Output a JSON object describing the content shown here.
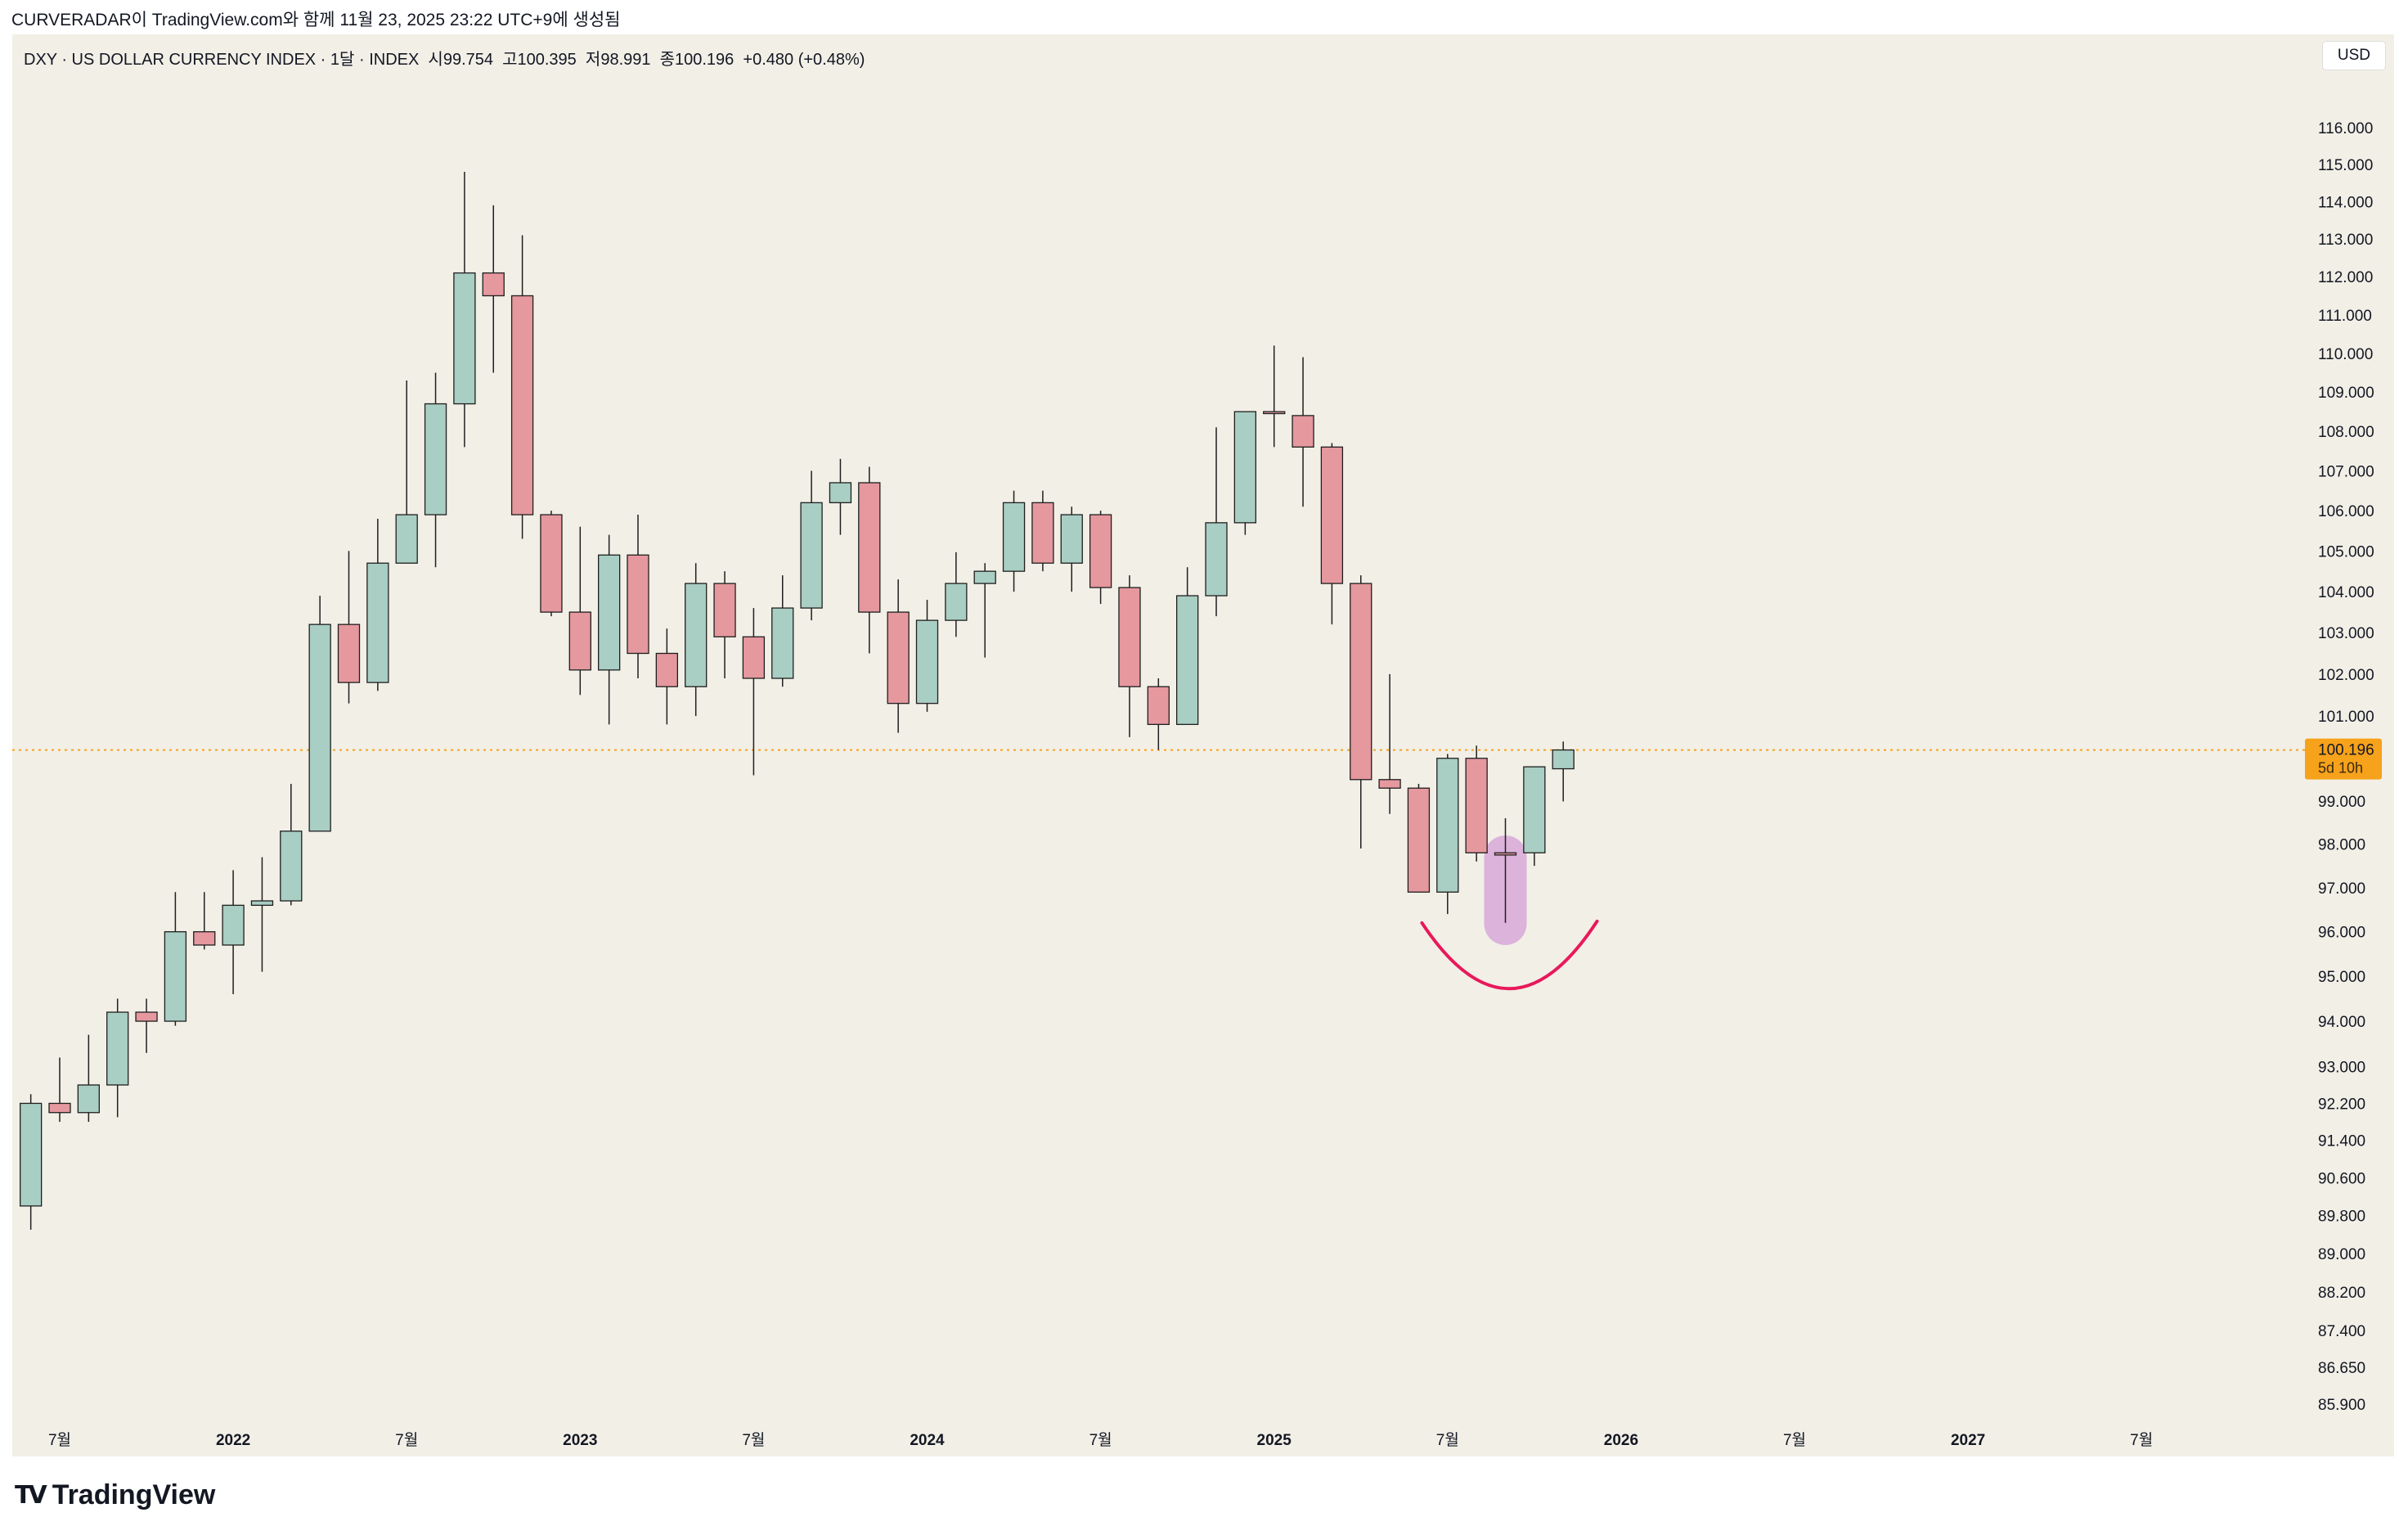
{
  "credit": "CURVERADAR이 TradingView.com와 함께 11월 23, 2025 23:22 UTC+9에 생성됨",
  "legend": "DXY · US DOLLAR CURRENCY INDEX · 1달 · INDEX  시99.754  고100.395  저98.991  종100.196  +0.480 (+0.48%)",
  "currency_button": "USD",
  "logo_text": "TradingView",
  "colors": {
    "up": "#a9cec3",
    "down": "#e5989e",
    "border": "#1f1f1f",
    "last": "#f7a21b",
    "bg": "#f2efe7",
    "highlight": "#d7a8d8",
    "arc": "#e8195b"
  },
  "chart_data": {
    "type": "candlestick",
    "title": "DXY · US DOLLAR CURRENCY INDEX · 1달 · INDEX",
    "scale": "log",
    "ylim": [
      85.6,
      117
    ],
    "y_ticks": [
      116,
      115,
      114,
      113,
      112,
      111,
      110,
      109,
      108,
      107,
      106,
      105,
      104,
      103,
      102,
      101,
      99,
      98,
      97,
      96,
      95,
      94,
      93,
      92.2,
      91.4,
      90.6,
      89.8,
      89,
      88.2,
      87.4,
      86.65,
      85.9
    ],
    "x_ticks": [
      {
        "month": "2021-07",
        "label": "7월"
      },
      {
        "month": "2022-01",
        "label": "2022"
      },
      {
        "month": "2022-07",
        "label": "7월"
      },
      {
        "month": "2023-01",
        "label": "2023"
      },
      {
        "month": "2023-07",
        "label": "7월"
      },
      {
        "month": "2024-01",
        "label": "2024"
      },
      {
        "month": "2024-07",
        "label": "7월"
      },
      {
        "month": "2025-01",
        "label": "2025"
      },
      {
        "month": "2025-07",
        "label": "7월"
      },
      {
        "month": "2026-01",
        "label": "2026"
      },
      {
        "month": "2026-07",
        "label": "7월"
      },
      {
        "month": "2027-01",
        "label": "2027"
      },
      {
        "month": "2027-07",
        "label": "7월"
      }
    ],
    "last_price": {
      "value": 100.196,
      "label": "100.196",
      "countdown": "5d 10h"
    },
    "start_month": "2021-06",
    "ohlc": [
      [
        90.0,
        92.4,
        89.5,
        92.2
      ],
      [
        92.2,
        93.2,
        91.8,
        92.0
      ],
      [
        92.0,
        93.7,
        91.8,
        92.6
      ],
      [
        92.6,
        94.5,
        91.9,
        94.2
      ],
      [
        94.2,
        94.5,
        93.3,
        94.0
      ],
      [
        94.0,
        96.9,
        93.9,
        96.0
      ],
      [
        96.0,
        96.9,
        95.6,
        95.7
      ],
      [
        95.7,
        97.4,
        94.6,
        96.6
      ],
      [
        96.6,
        97.7,
        95.1,
        96.7
      ],
      [
        96.7,
        99.4,
        96.6,
        98.3
      ],
      [
        98.3,
        103.9,
        98.3,
        103.2
      ],
      [
        103.2,
        105.0,
        101.3,
        101.8
      ],
      [
        101.8,
        105.8,
        101.6,
        104.7
      ],
      [
        104.7,
        109.3,
        104.7,
        105.9
      ],
      [
        105.9,
        109.5,
        104.6,
        108.7
      ],
      [
        108.7,
        114.8,
        107.6,
        112.1
      ],
      [
        112.1,
        113.9,
        109.5,
        111.5
      ],
      [
        111.5,
        113.1,
        105.3,
        105.9
      ],
      [
        105.9,
        106.0,
        103.4,
        103.5
      ],
      [
        103.5,
        105.6,
        101.5,
        102.1
      ],
      [
        102.1,
        105.4,
        100.8,
        104.9
      ],
      [
        104.9,
        105.9,
        101.9,
        102.5
      ],
      [
        102.5,
        103.1,
        100.8,
        101.7
      ],
      [
        101.7,
        104.7,
        101.0,
        104.2
      ],
      [
        104.2,
        104.5,
        101.9,
        102.9
      ],
      [
        102.9,
        103.6,
        99.6,
        101.9
      ],
      [
        101.9,
        104.4,
        101.7,
        103.6
      ],
      [
        103.6,
        107.0,
        103.3,
        106.2
      ],
      [
        106.2,
        107.3,
        105.4,
        106.7
      ],
      [
        106.7,
        107.1,
        102.5,
        103.5
      ],
      [
        103.5,
        104.3,
        100.6,
        101.3
      ],
      [
        101.3,
        103.8,
        101.1,
        103.3
      ],
      [
        103.3,
        104.97,
        102.9,
        104.2
      ],
      [
        104.2,
        104.7,
        102.4,
        104.5
      ],
      [
        104.5,
        106.5,
        104.0,
        106.2
      ],
      [
        106.2,
        106.5,
        104.5,
        104.7
      ],
      [
        104.7,
        106.1,
        104.0,
        105.9
      ],
      [
        105.9,
        106.0,
        103.7,
        104.1
      ],
      [
        104.1,
        104.4,
        100.5,
        101.7
      ],
      [
        101.7,
        101.9,
        100.2,
        100.8
      ],
      [
        100.8,
        104.6,
        100.8,
        103.9
      ],
      [
        103.9,
        108.1,
        103.4,
        105.7
      ],
      [
        105.7,
        108.5,
        105.4,
        108.5
      ],
      [
        108.5,
        110.2,
        107.6,
        108.45
      ],
      [
        108.4,
        109.9,
        106.1,
        107.6
      ],
      [
        107.6,
        107.7,
        103.2,
        104.2
      ],
      [
        104.2,
        104.4,
        97.9,
        99.5
      ],
      [
        99.5,
        102.0,
        98.7,
        99.3
      ],
      [
        99.3,
        99.4,
        96.9,
        96.9
      ],
      [
        96.9,
        100.1,
        96.4,
        100.0
      ],
      [
        100.0,
        100.3,
        97.6,
        97.8
      ],
      [
        97.8,
        98.6,
        96.2,
        97.75
      ],
      [
        97.8,
        99.8,
        97.5,
        99.8
      ],
      [
        99.754,
        100.395,
        98.991,
        100.196
      ]
    ],
    "annotations": [
      {
        "type": "highlight",
        "month": "2025-09"
      },
      {
        "type": "arc",
        "from": "2025-06",
        "to": "2025-12"
      }
    ]
  }
}
